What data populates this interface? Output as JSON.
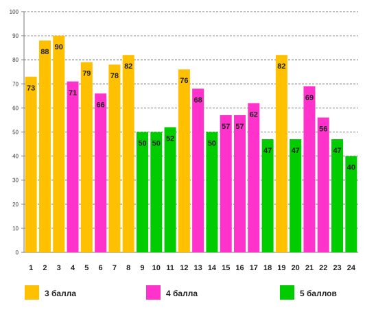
{
  "chart_data": {
    "type": "bar",
    "title": "",
    "xlabel": "",
    "ylabel": "",
    "ylim": [
      0,
      100
    ],
    "ytick_step": 10,
    "grid": true,
    "legend_position": "bottom",
    "categories": [
      "1",
      "2",
      "3",
      "4",
      "5",
      "6",
      "7",
      "8",
      "9",
      "10",
      "11",
      "12",
      "13",
      "14",
      "15",
      "16",
      "17",
      "18",
      "19",
      "20",
      "21",
      "22",
      "23",
      "24"
    ],
    "values": [
      73,
      88,
      90,
      71,
      79,
      66,
      78,
      82,
      50,
      50,
      52,
      76,
      68,
      50,
      57,
      57,
      62,
      47,
      82,
      47,
      69,
      56,
      47,
      40
    ],
    "groups": [
      "3 балла",
      "3 балла",
      "3 балла",
      "4 балла",
      "3 балла",
      "4 балла",
      "3 балла",
      "3 балла",
      "5 баллов",
      "5 баллов",
      "5 баллов",
      "3 балла",
      "4 балла",
      "5 баллов",
      "4 балла",
      "4 балла",
      "4 балла",
      "5 баллов",
      "3 балла",
      "5 баллов",
      "4 балла",
      "4 балла",
      "5 баллов",
      "5 баллов"
    ],
    "series": [
      {
        "name": "3 балла",
        "color": "#FFC000"
      },
      {
        "name": "4 балла",
        "color": "#FF33CC"
      },
      {
        "name": "5 баллов",
        "color": "#00CC00"
      }
    ]
  }
}
